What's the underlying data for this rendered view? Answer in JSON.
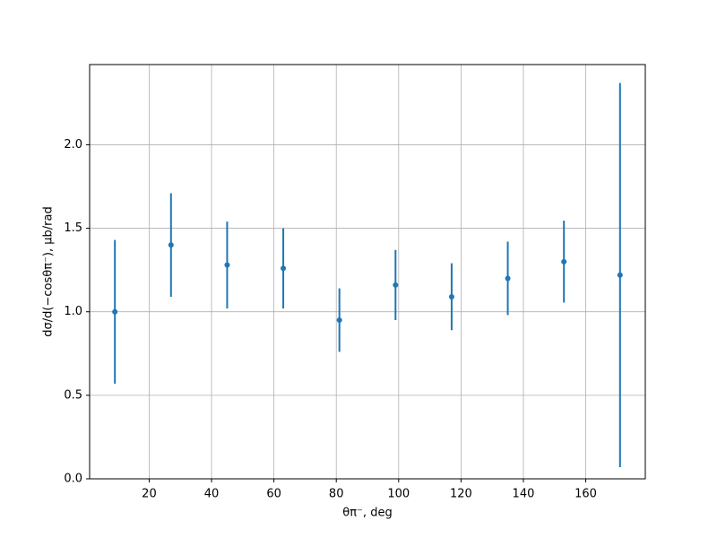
{
  "chart_data": {
    "type": "errorbar",
    "xlabel": "θπ⁻, deg",
    "ylabel": "dσ/d(−cosθπ⁻), μb/rad",
    "x": [
      9,
      27,
      45,
      63,
      81,
      99,
      117,
      135,
      153,
      171
    ],
    "series": [
      {
        "color": "#1f77b4",
        "values": [
          1.0,
          1.4,
          1.28,
          1.26,
          0.95,
          1.16,
          1.09,
          1.2,
          1.3,
          1.22
        ],
        "errors": [
          0.43,
          0.31,
          0.26,
          0.24,
          0.19,
          0.21,
          0.2,
          0.22,
          0.245,
          1.15
        ]
      }
    ],
    "xlim": [
      0.9,
      179.1
    ],
    "ylim": [
      0,
      2.48
    ],
    "xticks": [
      20,
      40,
      60,
      80,
      100,
      120,
      140,
      160
    ],
    "yticks": [
      {
        "value": 0,
        "label": "0.0"
      },
      {
        "value": 0.5,
        "label": "0.5"
      },
      {
        "value": 1,
        "label": "1.0"
      },
      {
        "value": 1.5,
        "label": "1.5"
      },
      {
        "value": 2,
        "label": "2.0"
      }
    ],
    "grid": true
  }
}
